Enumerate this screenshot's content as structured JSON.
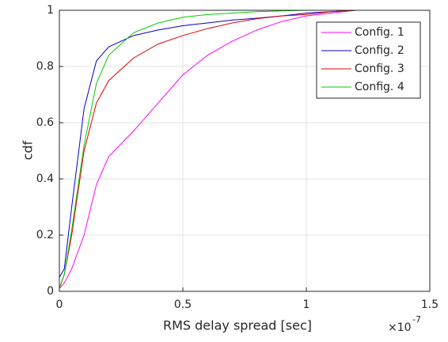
{
  "chart_data": {
    "type": "line",
    "x_label": "RMS delay spread [sec]",
    "y_label": "cdf",
    "x_multiplier": "×10",
    "x_exponent": "-7",
    "x": [
      0,
      0.02,
      0.05,
      0.1,
      0.15,
      0.2,
      0.3,
      0.4,
      0.5,
      0.6,
      0.7,
      0.8,
      0.9,
      1.0,
      1.1,
      1.2,
      1.5
    ],
    "series": [
      {
        "name": "Config. 1",
        "color": "#ff00ff",
        "values": [
          0.01,
          0.03,
          0.08,
          0.2,
          0.38,
          0.48,
          0.57,
          0.67,
          0.77,
          0.84,
          0.89,
          0.93,
          0.96,
          0.98,
          0.99,
          1,
          1
        ]
      },
      {
        "name": "Config. 2",
        "color": "#0000cc",
        "values": [
          0.05,
          0.08,
          0.3,
          0.65,
          0.82,
          0.87,
          0.91,
          0.93,
          0.945,
          0.955,
          0.965,
          0.972,
          0.98,
          0.99,
          0.995,
          1,
          1
        ]
      },
      {
        "name": "Config. 3",
        "color": "#e00000",
        "values": [
          0.01,
          0.06,
          0.2,
          0.5,
          0.67,
          0.75,
          0.83,
          0.88,
          0.91,
          0.935,
          0.955,
          0.97,
          0.98,
          0.985,
          0.995,
          1,
          1
        ]
      },
      {
        "name": "Config. 4",
        "color": "#00cc00",
        "values": [
          0.01,
          0.06,
          0.22,
          0.52,
          0.74,
          0.84,
          0.92,
          0.955,
          0.975,
          0.985,
          0.99,
          0.995,
          0.998,
          1,
          1,
          1,
          1
        ]
      }
    ],
    "xlim": [
      0,
      1.5
    ],
    "xticks": [
      0,
      0.5,
      1,
      1.5
    ],
    "ylim": [
      0,
      1
    ],
    "yticks": [
      0,
      0.2,
      0.4,
      0.6,
      0.8,
      1
    ],
    "grid": true,
    "legend": "northeast"
  }
}
